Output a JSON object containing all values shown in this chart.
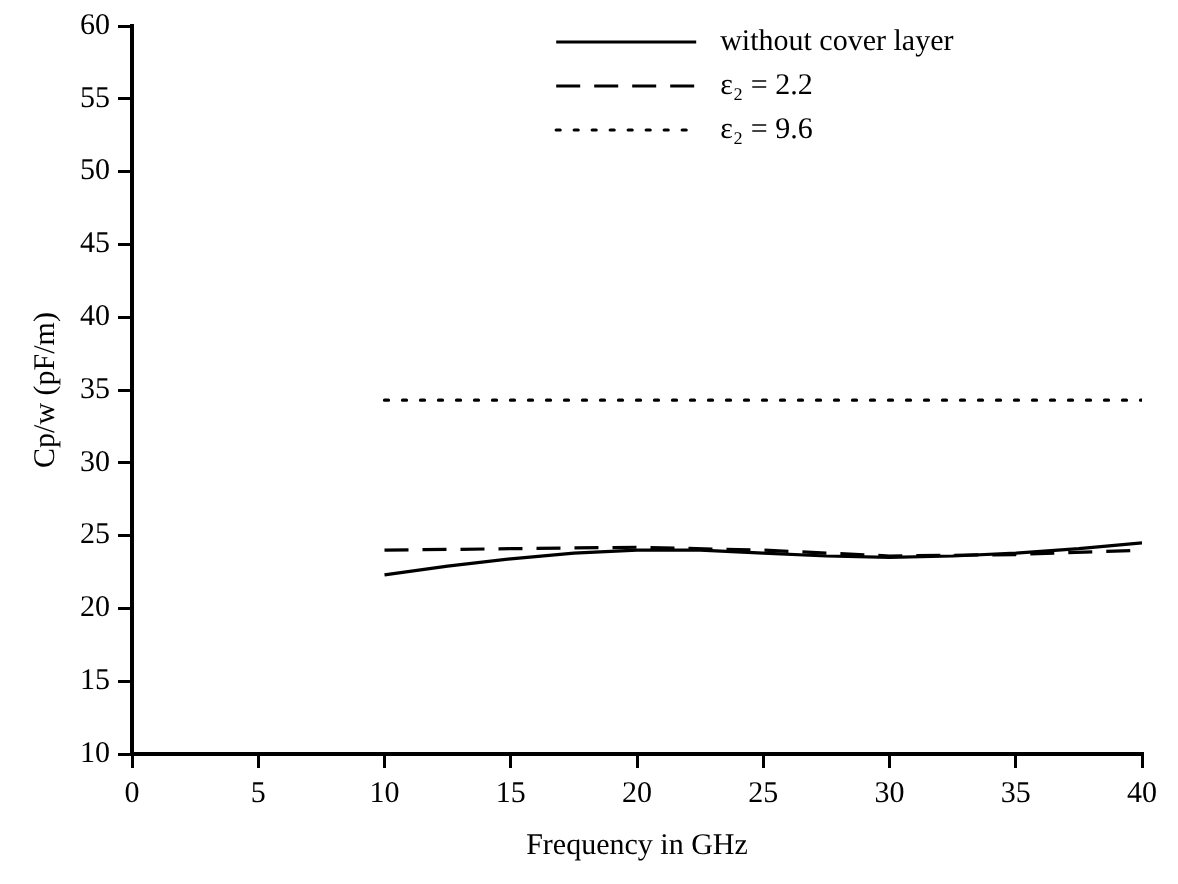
{
  "chart_data": {
    "type": "line",
    "xlabel": "Frequency in GHz",
    "ylabel": "Cp/w (pF/m)",
    "xlim": [
      0,
      40
    ],
    "xticks": [
      0,
      5,
      10,
      15,
      20,
      25,
      30,
      35,
      40
    ],
    "ylim": [
      10,
      60
    ],
    "yticks": [
      10,
      15,
      20,
      25,
      30,
      35,
      40,
      45,
      50,
      55,
      60
    ],
    "grid": false,
    "legend": "top",
    "marker": "none",
    "series": [
      {
        "name": "without cover layer",
        "color": "#000000",
        "line_style": "solid",
        "x": [
          10,
          12.5,
          15,
          17.5,
          20,
          22.5,
          25,
          27.5,
          30,
          32.5,
          35,
          37.5,
          40
        ],
        "values": [
          22.3,
          22.9,
          23.4,
          23.8,
          24.0,
          24.0,
          23.8,
          23.6,
          23.5,
          23.6,
          23.8,
          24.1,
          24.5
        ]
      },
      {
        "name": "ε₂ = 2.2",
        "color": "#000000",
        "line_style": "dashed",
        "x": [
          10,
          15,
          20,
          25,
          30,
          35,
          40
        ],
        "values": [
          24.0,
          24.1,
          24.2,
          24.0,
          23.6,
          23.7,
          24.0
        ]
      },
      {
        "name": "ε₂ = 9.6",
        "color": "#000000",
        "line_style": "dotted",
        "x": [
          10,
          40
        ],
        "values": [
          34.3,
          34.3
        ]
      }
    ]
  }
}
